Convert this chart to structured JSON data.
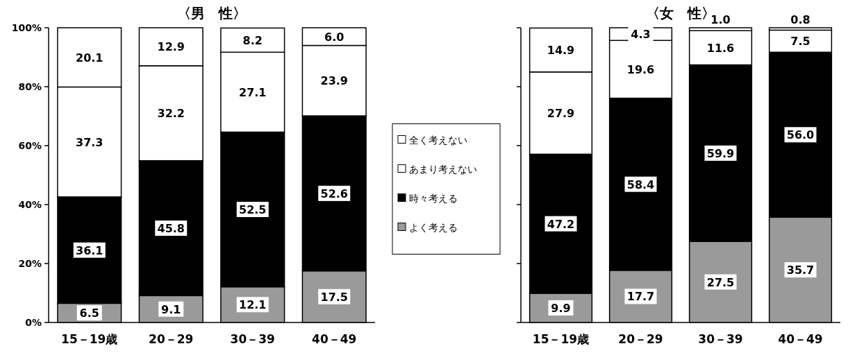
{
  "chart_data": [
    {
      "type": "bar",
      "title": "〈男　性〉",
      "stacked": true,
      "legend": "right",
      "categories": [
        "15－19歳",
        "20－29",
        "30－39",
        "40－49"
      ],
      "ylim": [
        0,
        100
      ],
      "yticks": [
        {
          "value": 0,
          "label": "0%"
        },
        {
          "value": 20,
          "label": "20%"
        },
        {
          "value": 40,
          "label": "40%"
        },
        {
          "value": 60,
          "label": "60%"
        },
        {
          "value": 80,
          "label": "80%"
        },
        {
          "value": 100,
          "label": "100%"
        }
      ],
      "series": [
        {
          "name": "よく考える",
          "color": "#9a9a9a",
          "values": [
            6.5,
            9.1,
            12.1,
            17.5
          ],
          "value_labels": [
            "6.5",
            "9.1",
            "12.1",
            "17.5"
          ]
        },
        {
          "name": "時々考える",
          "color": "#000000",
          "values": [
            36.1,
            45.8,
            52.5,
            52.6
          ],
          "value_labels": [
            "36.1",
            "45.8",
            "52.5",
            "52.6"
          ]
        },
        {
          "name": "あまり考えない",
          "color": "#ffffff",
          "values": [
            37.3,
            32.2,
            27.1,
            23.9
          ],
          "value_labels": [
            "37.3",
            "32.2",
            "27.1",
            "23.9"
          ]
        },
        {
          "name": "全く考えない",
          "color": "#ffffff",
          "values": [
            20.1,
            12.9,
            8.2,
            6.0
          ],
          "value_labels": [
            "20.1",
            "12.9",
            "8.2",
            "6.0"
          ]
        }
      ]
    },
    {
      "type": "bar",
      "title": "〈女　性〉",
      "stacked": true,
      "tick_labels": "x",
      "categories": [
        "15－19歳",
        "20－29",
        "30－39",
        "40－49"
      ],
      "ylim": [
        0,
        100
      ],
      "yticks": [
        {
          "value": 0,
          "label": null
        },
        {
          "value": 20,
          "label": null
        },
        {
          "value": 40,
          "label": null
        },
        {
          "value": 60,
          "label": null
        },
        {
          "value": 80,
          "label": null
        },
        {
          "value": 100,
          "label": null
        }
      ],
      "series": [
        {
          "color": "#9a9a9a",
          "values": [
            9.9,
            17.7,
            27.5,
            35.7
          ],
          "value_labels": [
            "9.9",
            "17.7",
            "27.5",
            "35.7"
          ]
        },
        {
          "color": "#000000",
          "values": [
            47.2,
            58.4,
            59.9,
            56.0
          ],
          "value_labels": [
            "47.2",
            "58.4",
            "59.9",
            "56.0"
          ]
        },
        {
          "color": "#ffffff",
          "values": [
            27.9,
            19.6,
            11.6,
            7.5
          ],
          "value_labels": [
            "27.9",
            "19.6",
            "11.6",
            "7.5"
          ]
        },
        {
          "color": "#ffffff",
          "values": [
            14.9,
            4.3,
            1.0,
            0.8
          ],
          "value_labels": [
            "14.9",
            "4.3",
            "1.0",
            "0.8"
          ]
        }
      ]
    }
  ]
}
